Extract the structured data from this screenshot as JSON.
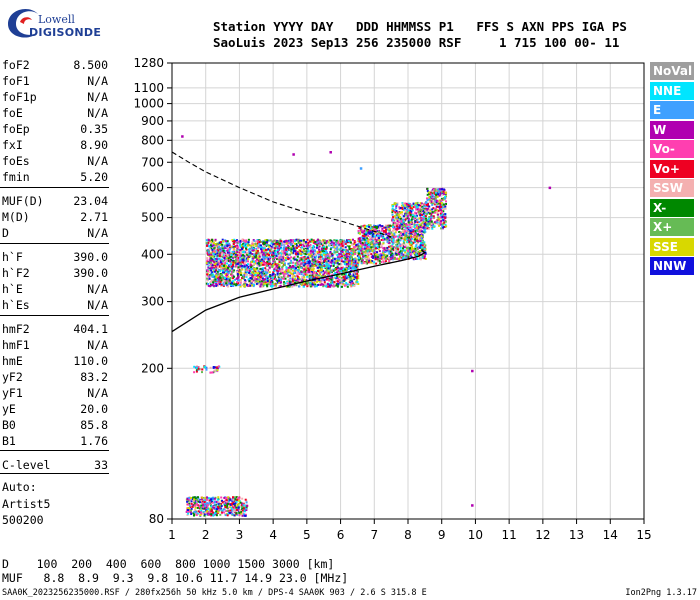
{
  "logo": {
    "line1": "Lowell",
    "line2": "DIGISONDE"
  },
  "header": {
    "line1": "Station YYYY DAY   DDD HHMMSS P1   FFS S AXN PPS IGA PS",
    "line2": "SaoLuis 2023 Sep13 256 235000 RSF     1 715 100 00- 11"
  },
  "params_group1": [
    {
      "name": "foF2",
      "value": "8.500"
    },
    {
      "name": "foF1",
      "value": "N/A"
    },
    {
      "name": "foF1p",
      "value": "N/A"
    },
    {
      "name": "foE",
      "value": "N/A"
    },
    {
      "name": "foEp",
      "value": "0.35"
    },
    {
      "name": "fxI",
      "value": "8.90"
    },
    {
      "name": "foEs",
      "value": "N/A"
    },
    {
      "name": "fmin",
      "value": "5.20"
    }
  ],
  "params_group2": [
    {
      "name": "MUF(D)",
      "value": "23.04"
    },
    {
      "name": "M(D)",
      "value": "2.71"
    },
    {
      "name": "D",
      "value": "N/A"
    }
  ],
  "params_group3": [
    {
      "name": "h`F",
      "value": "390.0"
    },
    {
      "name": "h`F2",
      "value": "390.0"
    },
    {
      "name": "h`E",
      "value": "N/A"
    },
    {
      "name": "h`Es",
      "value": "N/A"
    }
  ],
  "params_group4": [
    {
      "name": "hmF2",
      "value": "404.1"
    },
    {
      "name": "hmF1",
      "value": "N/A"
    },
    {
      "name": "hmE",
      "value": "110.0"
    },
    {
      "name": "yF2",
      "value": "83.2"
    },
    {
      "name": "yF1",
      "value": "N/A"
    },
    {
      "name": "yE",
      "value": "20.0"
    },
    {
      "name": "B0",
      "value": "85.8"
    },
    {
      "name": "B1",
      "value": "1.76"
    }
  ],
  "params_group5": [
    {
      "name": "C-level",
      "value": "33"
    }
  ],
  "sidebar_info": {
    "line1": "Auto:",
    "line2": "Artist5",
    "line3": "500200"
  },
  "legend": [
    {
      "label": "NoVal",
      "color": "#9e9e9e"
    },
    {
      "label": "NNE",
      "color": "#00e5ff"
    },
    {
      "label": "E",
      "color": "#3fa0ff"
    },
    {
      "label": "W",
      "color": "#b000b0"
    },
    {
      "label": "Vo-",
      "color": "#ff3fb0"
    },
    {
      "label": "Vo+",
      "color": "#ee0022"
    },
    {
      "label": "SSW",
      "color": "#f4b0b0"
    },
    {
      "label": "X-",
      "color": "#008800"
    },
    {
      "label": "X+",
      "color": "#66bb55"
    },
    {
      "label": "SSE",
      "color": "#d8d800"
    },
    {
      "label": "NNW",
      "color": "#1010dd"
    }
  ],
  "footer": {
    "line1": "D    100  200  400  600  800 1000 1500 3000 [km]",
    "line2": "MUF   8.8  8.9  9.3  9.8 10.6 11.7 14.9 23.0 [MHz]",
    "line3": "SAA0K_2023256235000.RSF / 280fx256h 50 kHz 5.0 km / DPS-4 SAA0K 903 / 2.6 S 315.8 E",
    "version": "Ion2Png 1.3.17"
  },
  "chart_data": {
    "type": "scatter",
    "xlim": [
      1,
      15
    ],
    "ylim": [
      80,
      1280
    ],
    "x_ticks": [
      1,
      2,
      3,
      4,
      5,
      6,
      7,
      8,
      9,
      10,
      11,
      12,
      13,
      14,
      15
    ],
    "y_ticks": [
      80,
      200,
      300,
      400,
      500,
      600,
      700,
      800,
      900,
      1000,
      1100,
      1280
    ],
    "y_tick_labels": [
      "80",
      "200",
      "300",
      "400",
      "500",
      "600",
      "700",
      "800",
      "900",
      "1000",
      "1100",
      "1280"
    ],
    "y_scale": "log",
    "grid": true,
    "profile_solid": [
      [
        1.0,
        250
      ],
      [
        2.0,
        285
      ],
      [
        3.0,
        308
      ],
      [
        4.0,
        324
      ],
      [
        5.0,
        340
      ],
      [
        6.0,
        355
      ],
      [
        7.0,
        372
      ],
      [
        7.8,
        385
      ],
      [
        8.3,
        395
      ],
      [
        8.5,
        404
      ],
      [
        8.4,
        410
      ]
    ],
    "profile_dashed": [
      [
        1.0,
        745
      ],
      [
        1.5,
        700
      ],
      [
        2.0,
        660
      ],
      [
        3.0,
        600
      ],
      [
        4.0,
        550
      ],
      [
        5.0,
        515
      ],
      [
        6.0,
        490
      ],
      [
        7.0,
        460
      ],
      [
        7.5,
        445
      ]
    ],
    "echo_clusters": [
      {
        "x": [
          2.0,
          6.5
        ],
        "y": [
          330,
          440
        ],
        "density": "high"
      },
      {
        "x": [
          6.5,
          7.5
        ],
        "y": [
          380,
          480
        ],
        "density": "high"
      },
      {
        "x": [
          7.5,
          8.5
        ],
        "y": [
          390,
          550
        ],
        "density": "high"
      },
      {
        "x": [
          8.5,
          9.1
        ],
        "y": [
          470,
          600
        ],
        "density": "high"
      },
      {
        "x": [
          1.4,
          3.2
        ],
        "y": [
          82,
          92
        ],
        "density": "high"
      },
      {
        "x": [
          1.6,
          2.4
        ],
        "y": [
          196,
          204
        ],
        "density": "medium"
      }
    ],
    "isolated_points": [
      {
        "x": 1.3,
        "y": 820,
        "color": "#b000b0"
      },
      {
        "x": 4.6,
        "y": 735,
        "color": "#b000b0"
      },
      {
        "x": 5.7,
        "y": 745,
        "color": "#b000b0"
      },
      {
        "x": 6.6,
        "y": 675,
        "color": "#3fa0ff"
      },
      {
        "x": 12.2,
        "y": 600,
        "color": "#b000b0"
      },
      {
        "x": 9.9,
        "y": 197,
        "color": "#b000b0"
      },
      {
        "x": 9.9,
        "y": 87,
        "color": "#b000b0"
      }
    ]
  }
}
